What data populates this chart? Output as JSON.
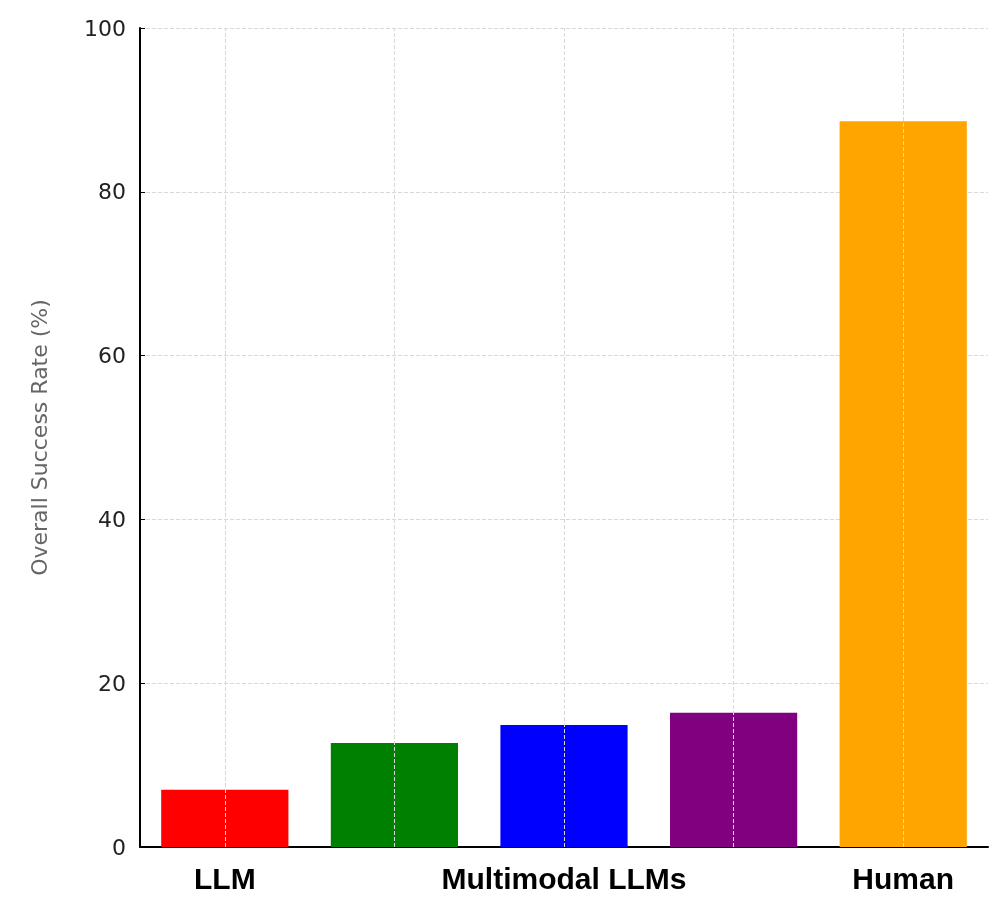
{
  "chart_data": {
    "type": "bar",
    "ylabel": "Overall Success Rate (%)",
    "categories": [
      "LLM",
      null,
      "Multimodal LLMs",
      null,
      "Human"
    ],
    "values": [
      7,
      12.7,
      14.9,
      16.4,
      88.6
    ],
    "colors": [
      "#ff0000",
      "#008000",
      "#0000ff",
      "#800080",
      "#ffa500"
    ],
    "ylim": [
      0,
      100
    ],
    "yticks": [
      0,
      20,
      40,
      60,
      80,
      100
    ],
    "grid": true
  }
}
